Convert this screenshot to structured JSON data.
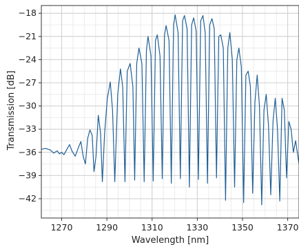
{
  "chart_data": {
    "type": "line",
    "title": "",
    "xlabel": "Wavelength [nm]",
    "ylabel": "Transmission [dB]",
    "xlim": [
      1261,
      1375
    ],
    "ylim": [
      -44.5,
      -17
    ],
    "x_ticks": [
      1270,
      1290,
      1310,
      1330,
      1350,
      1370
    ],
    "x_tick_labels": [
      "1270",
      "1290",
      "1310",
      "1330",
      "1350",
      "1370"
    ],
    "y_ticks": [
      -18,
      -21,
      -24,
      -27,
      -30,
      -33,
      -36,
      -39,
      -42
    ],
    "y_tick_labels": [
      "−18",
      "−21",
      "−24",
      "−27",
      "−30",
      "−33",
      "−36",
      "−39",
      "−42"
    ],
    "x_minor_step": 5,
    "y_minor_step": 1.5,
    "grid": true,
    "legend": "none",
    "line_color": "#1f5f96",
    "series": [
      {
        "x": [
          1261,
          1263,
          1265,
          1266.5,
          1268,
          1269,
          1270,
          1271,
          1272.5,
          1273.5,
          1274.5,
          1276,
          1277.5,
          1278.5,
          1279.5,
          1280.5,
          1281.5,
          1282.5,
          1283.5,
          1284.3,
          1285.2,
          1286.2,
          1287.2,
          1288,
          1289,
          1290.2,
          1291.5,
          1292.5,
          1293.5,
          1294.8,
          1296,
          1297,
          1298,
          1299,
          1300.3,
          1301.5,
          1302.3,
          1303.2,
          1304.2,
          1305.5,
          1306.5,
          1307.5,
          1308.2,
          1309.5,
          1310.5,
          1311.5,
          1312.3,
          1313.5,
          1314.5,
          1315.5,
          1316.2,
          1317.5,
          1318.5,
          1319.5,
          1320.2,
          1321.5,
          1322.5,
          1323.5,
          1324.3,
          1325.5,
          1326.5,
          1327.5,
          1328.4,
          1329.5,
          1330.5,
          1331.5,
          1332.5,
          1333.5,
          1334.5,
          1335.5,
          1336.5,
          1337.5,
          1338.5,
          1339.5,
          1340.4,
          1341.5,
          1342.5,
          1343.5,
          1344.4,
          1345.5,
          1346.5,
          1347.5,
          1348.4,
          1349.5,
          1350.5,
          1351.5,
          1352.5,
          1353.5,
          1354.5,
          1355.5,
          1356.5,
          1357.5,
          1358.5,
          1359.5,
          1360.5,
          1361.5,
          1362.5,
          1363.5,
          1364.5,
          1365.5,
          1366.5,
          1367.5,
          1368.5,
          1369.5,
          1370.5,
          1371.5,
          1372.5,
          1373.5,
          1375
        ],
        "values": [
          -35.6,
          -35.5,
          -35.7,
          -36.1,
          -35.8,
          -36.2,
          -36.0,
          -36.3,
          -35.5,
          -35.0,
          -35.8,
          -36.5,
          -35.3,
          -34.6,
          -36.5,
          -37.5,
          -34.2,
          -33.1,
          -33.8,
          -38.5,
          -36.5,
          -31.2,
          -33.5,
          -39.8,
          -33.5,
          -29.0,
          -26.9,
          -30.5,
          -39.8,
          -28.5,
          -25.2,
          -27.5,
          -39.8,
          -25.5,
          -24.5,
          -27.5,
          -39.6,
          -24.5,
          -22.5,
          -24.5,
          -39.8,
          -22.8,
          -21.0,
          -23.5,
          -39.7,
          -21.5,
          -20.8,
          -23.5,
          -39.4,
          -20.8,
          -19.6,
          -21.5,
          -40.0,
          -19.5,
          -18.2,
          -20.5,
          -39.4,
          -19.0,
          -18.3,
          -20.0,
          -40.5,
          -19.5,
          -18.6,
          -20.3,
          -39.5,
          -19.0,
          -18.3,
          -20.5,
          -40.0,
          -19.5,
          -18.7,
          -20.0,
          -39.3,
          -21.0,
          -20.8,
          -22.5,
          -42.2,
          -22.5,
          -20.5,
          -24.0,
          -40.5,
          -24.0,
          -22.5,
          -25.0,
          -42.5,
          -26.0,
          -25.5,
          -27.5,
          -41.3,
          -29.5,
          -26.0,
          -30.0,
          -42.8,
          -30.5,
          -28.5,
          -32.5,
          -41.5,
          -32.0,
          -29.0,
          -33.0,
          -42.3,
          -29.0,
          -30.5,
          -39.3,
          -32.0,
          -33.0,
          -36.0,
          -34.5,
          -37.5
        ]
      }
    ]
  }
}
